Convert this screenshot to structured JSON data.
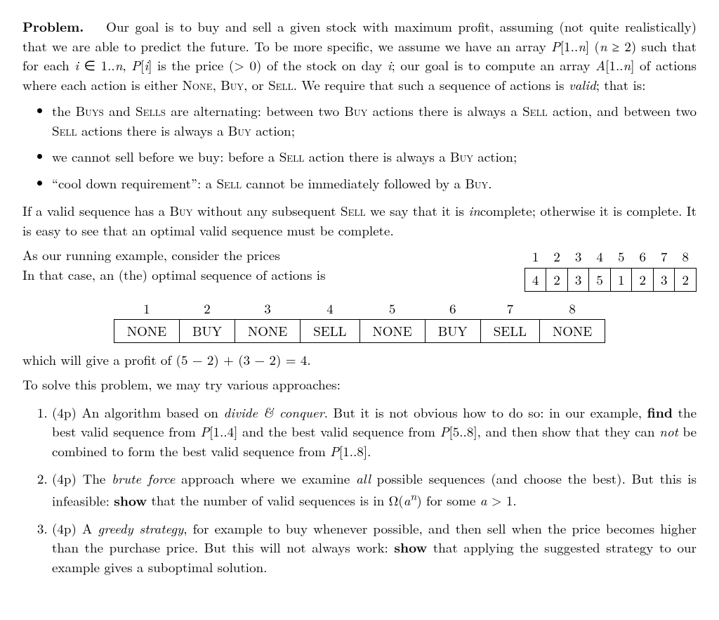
{
  "problem_heading": "Problem.",
  "intro_para": "Our goal is to buy and sell a given stock with maximum profit, assuming (not quite realistically) that we are able to predict the future. To be more specific, we assume we have an array P[1..n] (n ≥ 2) such that for each i ∈ 1..n, P[i] is the price (> 0) of the stock on day i; our goal is to compute an array A[1..n] of actions where each action is either None, Buy, or Sell. We require that such a sequence of actions is valid; that is:",
  "bullets": {
    "b1_pre": "the ",
    "b1_buys": "Buys",
    "b1_and": " and ",
    "b1_sells": "Sells",
    "b1_mid1": " are alternating: between two ",
    "b1_buy": "Buy",
    "b1_mid2": " actions there is always a ",
    "b1_sell": "Sell",
    "b1_mid3": " action, and between two ",
    "b1_sell2": "Sell",
    "b1_mid4": " actions there is always a ",
    "b1_buy2": "Buy",
    "b1_end": " action;",
    "b2_pre": "we cannot sell before we buy: before a ",
    "b2_sell": "Sell",
    "b2_mid": " action there is always a ",
    "b2_buy": "Buy",
    "b2_end": " action;",
    "b3_pre": "“cool down requirement”: a ",
    "b3_sell": "Sell",
    "b3_mid": " cannot be immediately followed by a ",
    "b3_buy": "Buy",
    "b3_end": "."
  },
  "complete_para_pre": "If a valid sequence has a ",
  "complete_buy": "Buy",
  "complete_mid1": " without any subsequent ",
  "complete_sell": "Sell",
  "complete_mid2": " we say that it is ",
  "complete_in": "in",
  "complete_end": "complete; otherwise it is complete. It is easy to see that an optimal valid sequence must be complete.",
  "example_line1": "As our running example, consider the prices",
  "example_line2": "In that case, an (the) optimal sequence of actions is",
  "prices": {
    "headers": [
      "1",
      "2",
      "3",
      "4",
      "5",
      "6",
      "7",
      "8"
    ],
    "values": [
      "4",
      "2",
      "3",
      "5",
      "1",
      "2",
      "3",
      "2"
    ]
  },
  "actions": {
    "headers": [
      "1",
      "2",
      "3",
      "4",
      "5",
      "6",
      "7",
      "8"
    ],
    "values": [
      "NONE",
      "BUY",
      "NONE",
      "SELL",
      "NONE",
      "BUY",
      "SELL",
      "NONE"
    ]
  },
  "profit_line": "which will give a profit of (5 − 2) + (3 − 2) = 4.",
  "approaches_line": "To solve this problem, we may try various approaches:",
  "items": {
    "p1_pts": "(4p) ",
    "p1_a": "An algorithm based on ",
    "p1_dc": "divide & conquer",
    "p1_b": ". But it is not obvious how to do so: in our example, ",
    "p1_find": "find",
    "p1_c": " the best valid sequence from P[1..4] and the best valid sequence from P[5..8], and then show that they can ",
    "p1_not": "not",
    "p1_d": " be combined to form the best valid sequence from P[1..8].",
    "p2_pts": "(4p) ",
    "p2_a": "The ",
    "p2_bf": "brute force",
    "p2_b": " approach where we examine ",
    "p2_all": "all",
    "p2_c": " possible sequences (and choose the best). But this is infeasible: ",
    "p2_show": "show",
    "p2_d": " that the number of valid sequences is in Ω(aⁿ) for some a > 1.",
    "p3_pts": "(4p) ",
    "p3_a": "A ",
    "p3_gs": "greedy strategy",
    "p3_b": ", for example to buy whenever possible, and then sell when the price becomes higher than the purchase price. But this will not always work: ",
    "p3_show": "show",
    "p3_c": " that applying the suggested strategy to our example gives a suboptimal solution."
  }
}
